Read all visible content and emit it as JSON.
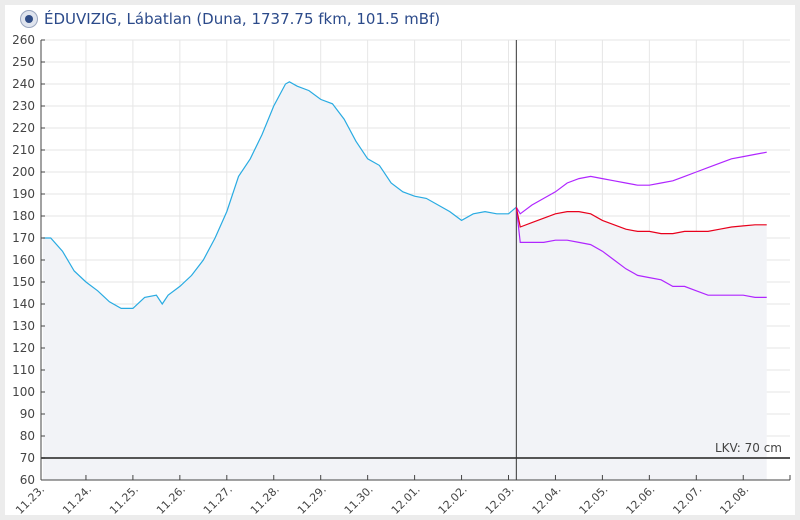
{
  "header": {
    "title": "ÉDUVIZIG, Lábatlan (Duna, 1737.75 fkm, 101.5 mBf)",
    "logo_icon": "eduvizig-logo-icon"
  },
  "chart_data": {
    "type": "line",
    "title": "ÉDUVIZIG, Lábatlan (Duna, 1737.75 fkm, 101.5 mBf)",
    "xlabel": "",
    "ylabel": "",
    "ylim": [
      60,
      260
    ],
    "yticks": [
      60,
      70,
      80,
      90,
      100,
      110,
      120,
      130,
      140,
      150,
      160,
      170,
      180,
      190,
      200,
      210,
      220,
      230,
      240,
      250,
      260
    ],
    "xlim": [
      "11.23. 00:00",
      "12.09. 00:00"
    ],
    "xticks": [
      "11.23.",
      "11.24.",
      "11.25.",
      "11.26.",
      "11.27.",
      "11.28.",
      "11.29.",
      "11.30.",
      "12.01.",
      "12.02.",
      "12.03.",
      "12.04.",
      "12.05.",
      "12.06.",
      "12.07.",
      "12.08."
    ],
    "grid": true,
    "now_marker": "12.03. 04:00",
    "reference_line": {
      "label": "LKV: 70 cm",
      "value": 70,
      "color": "#555555"
    },
    "series": [
      {
        "role": "observed",
        "color": "#29abe2",
        "fill": "#f2f3f7",
        "points": [
          [
            "11.23. 02:00",
            170
          ],
          [
            "11.23. 06:00",
            170
          ],
          [
            "11.23. 12:00",
            164
          ],
          [
            "11.23. 18:00",
            155
          ],
          [
            "11.24. 00:00",
            150
          ],
          [
            "11.24. 06:00",
            146
          ],
          [
            "11.24. 12:00",
            141
          ],
          [
            "11.24. 18:00",
            138
          ],
          [
            "11.25. 00:00",
            138
          ],
          [
            "11.25. 06:00",
            143
          ],
          [
            "11.25. 12:00",
            144
          ],
          [
            "11.25. 15:00",
            140
          ],
          [
            "11.25. 18:00",
            144
          ],
          [
            "11.26. 00:00",
            148
          ],
          [
            "11.26. 06:00",
            153
          ],
          [
            "11.26. 12:00",
            160
          ],
          [
            "11.26. 18:00",
            170
          ],
          [
            "11.27. 00:00",
            182
          ],
          [
            "11.27. 06:00",
            198
          ],
          [
            "11.27. 12:00",
            206
          ],
          [
            "11.27. 18:00",
            217
          ],
          [
            "11.28. 00:00",
            230
          ],
          [
            "11.28. 06:00",
            240
          ],
          [
            "11.28. 08:00",
            241
          ],
          [
            "11.28. 12:00",
            239
          ],
          [
            "11.28. 18:00",
            237
          ],
          [
            "11.29. 00:00",
            233
          ],
          [
            "11.29. 06:00",
            231
          ],
          [
            "11.29. 12:00",
            224
          ],
          [
            "11.29. 18:00",
            214
          ],
          [
            "11.30. 00:00",
            206
          ],
          [
            "11.30. 06:00",
            203
          ],
          [
            "11.30. 12:00",
            195
          ],
          [
            "11.30. 18:00",
            191
          ],
          [
            "12.01. 00:00",
            189
          ],
          [
            "12.01. 06:00",
            188
          ],
          [
            "12.01. 12:00",
            185
          ],
          [
            "12.01. 18:00",
            182
          ],
          [
            "12.02. 00:00",
            178
          ],
          [
            "12.02. 06:00",
            181
          ],
          [
            "12.02. 12:00",
            182
          ],
          [
            "12.02. 18:00",
            181
          ],
          [
            "12.03. 00:00",
            181
          ],
          [
            "12.03. 04:00",
            184
          ]
        ]
      },
      {
        "role": "forecast",
        "color": "#e8001c",
        "start": [
          "12.03. 04:00",
          184
        ],
        "step_hours": 6,
        "from": "12.03. 06:00",
        "values": [
          175,
          177,
          179,
          181,
          182,
          182,
          181,
          178,
          176,
          174,
          173,
          173,
          172,
          172,
          173,
          173,
          173,
          174,
          175,
          175.5,
          176,
          176
        ]
      },
      {
        "role": "forecast-upper",
        "color": "#b026ff",
        "start": [
          "12.03. 04:00",
          184
        ],
        "step_hours": 6,
        "from": "12.03. 06:00",
        "values": [
          181,
          185,
          188,
          191,
          195,
          197,
          198,
          197,
          196,
          195,
          194,
          194,
          195,
          196,
          198,
          200,
          202,
          204,
          206,
          207,
          208,
          209
        ]
      },
      {
        "role": "forecast-lower",
        "color": "#b026ff",
        "start": [
          "12.03. 04:00",
          184
        ],
        "step_hours": 6,
        "from": "12.03. 06:00",
        "values": [
          168,
          168,
          168,
          169,
          169,
          168,
          167,
          164,
          160,
          156,
          153,
          152,
          151,
          148,
          148,
          146,
          144,
          144,
          144,
          144,
          143,
          143
        ]
      }
    ]
  }
}
